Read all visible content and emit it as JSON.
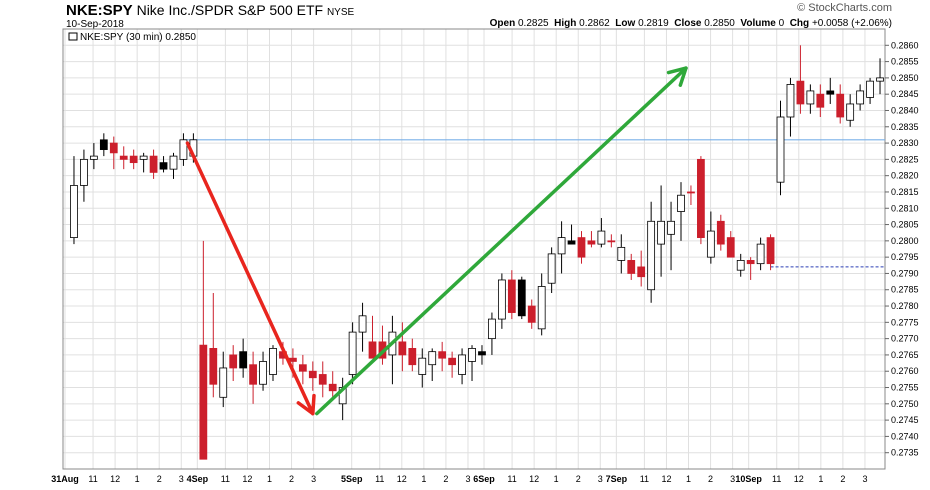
{
  "header": {
    "symbol": "NKE:SPY",
    "name": "Nike Inc./SPDR S&P 500 ETF",
    "exchange": "NYSE",
    "date": "10-Sep-2018",
    "brand": "© StockCharts.com",
    "open_label": "Open",
    "open": "0.2825",
    "high_label": "High",
    "high": "0.2862",
    "low_label": "Low",
    "low": "0.2819",
    "close_label": "Close",
    "close": "0.2850",
    "volume_label": "Volume",
    "volume": "0",
    "chg_label": "Chg",
    "chg": "+0.0058 (+2.06%)"
  },
  "legend": {
    "text": "NKE:SPY (30 min) 0.2850"
  },
  "colors": {
    "up": "#ffffff",
    "down": "#cc1f2c",
    "black": "#000000",
    "red_arrow": "#e8251e",
    "green_arrow": "#2fa83a",
    "hline": "#7ab0e8",
    "dotted": "#2b3fb5",
    "grid": "#e0e0e0"
  },
  "chart_data": {
    "type": "candlestick",
    "ylim": [
      0.273,
      0.2865
    ],
    "y_ticks": [
      "0.2735",
      "0.2740",
      "0.2745",
      "0.2750",
      "0.2755",
      "0.2760",
      "0.2765",
      "0.2770",
      "0.2775",
      "0.2780",
      "0.2785",
      "0.2790",
      "0.2795",
      "0.2800",
      "0.2805",
      "0.2810",
      "0.2815",
      "0.2820",
      "0.2825",
      "0.2830",
      "0.2835",
      "0.2840",
      "0.2845",
      "0.2850",
      "0.2855",
      "0.2860"
    ],
    "x_labels": [
      {
        "i": 0,
        "label": "31Aug",
        "bold": true
      },
      {
        "i": 1,
        "label": "11"
      },
      {
        "i": 2,
        "label": "12"
      },
      {
        "i": 3,
        "label": "1"
      },
      {
        "i": 4,
        "label": "2"
      },
      {
        "i": 5,
        "label": "3"
      },
      {
        "i": 6,
        "label": "4Sep",
        "bold": true
      },
      {
        "i": 7,
        "label": "11"
      },
      {
        "i": 8,
        "label": "12"
      },
      {
        "i": 9,
        "label": "1"
      },
      {
        "i": 10,
        "label": "2"
      },
      {
        "i": 11,
        "label": "3"
      },
      {
        "i": 13,
        "label": "5Sep",
        "bold": true
      },
      {
        "i": 14,
        "label": "11"
      },
      {
        "i": 15,
        "label": "12"
      },
      {
        "i": 16,
        "label": "1"
      },
      {
        "i": 17,
        "label": "2"
      },
      {
        "i": 18,
        "label": "3"
      },
      {
        "i": 19,
        "label": "6Sep",
        "bold": true
      },
      {
        "i": 20,
        "label": "11"
      },
      {
        "i": 21,
        "label": "12"
      },
      {
        "i": 22,
        "label": "1"
      },
      {
        "i": 23,
        "label": "2"
      },
      {
        "i": 24,
        "label": "3"
      },
      {
        "i": 25,
        "label": "7Sep",
        "bold": true
      },
      {
        "i": 26,
        "label": "11"
      },
      {
        "i": 27,
        "label": "12"
      },
      {
        "i": 28,
        "label": "1"
      },
      {
        "i": 29,
        "label": "2"
      },
      {
        "i": 30,
        "label": "3"
      },
      {
        "i": 31,
        "label": "10Sep",
        "bold": true
      },
      {
        "i": 32,
        "label": "11"
      },
      {
        "i": 33,
        "label": "12"
      },
      {
        "i": 34,
        "label": "1"
      },
      {
        "i": 35,
        "label": "2"
      },
      {
        "i": 36,
        "label": "3"
      }
    ],
    "candles": [
      {
        "o": 0.2801,
        "h": 0.2826,
        "l": 0.2799,
        "c": 0.2817,
        "k": "up"
      },
      {
        "o": 0.2817,
        "h": 0.2828,
        "l": 0.2812,
        "c": 0.2825,
        "k": "up"
      },
      {
        "o": 0.2825,
        "h": 0.283,
        "l": 0.2822,
        "c": 0.2826,
        "k": "up"
      },
      {
        "o": 0.2831,
        "h": 0.2833,
        "l": 0.2826,
        "c": 0.2828,
        "k": "black"
      },
      {
        "o": 0.283,
        "h": 0.2832,
        "l": 0.2822,
        "c": 0.2827,
        "k": "down"
      },
      {
        "o": 0.2826,
        "h": 0.2829,
        "l": 0.2822,
        "c": 0.2825,
        "k": "down"
      },
      {
        "o": 0.2826,
        "h": 0.2828,
        "l": 0.2822,
        "c": 0.2824,
        "k": "down"
      },
      {
        "o": 0.2826,
        "h": 0.2827,
        "l": 0.2821,
        "c": 0.2825,
        "k": "up"
      },
      {
        "o": 0.2826,
        "h": 0.2828,
        "l": 0.2819,
        "c": 0.2821,
        "k": "down"
      },
      {
        "o": 0.2824,
        "h": 0.2826,
        "l": 0.2821,
        "c": 0.2822,
        "k": "black"
      },
      {
        "o": 0.2822,
        "h": 0.2827,
        "l": 0.2819,
        "c": 0.2826,
        "k": "up"
      },
      {
        "o": 0.2825,
        "h": 0.2833,
        "l": 0.2823,
        "c": 0.2831,
        "k": "up"
      },
      {
        "o": 0.2826,
        "h": 0.2833,
        "l": 0.2824,
        "c": 0.2831,
        "k": "up"
      },
      {
        "o": 0.2768,
        "h": 0.28,
        "l": 0.2733,
        "c": 0.2733,
        "k": "down"
      },
      {
        "o": 0.2767,
        "h": 0.2784,
        "l": 0.2752,
        "c": 0.2756,
        "k": "down"
      },
      {
        "o": 0.2752,
        "h": 0.2766,
        "l": 0.2749,
        "c": 0.2761,
        "k": "up"
      },
      {
        "o": 0.2765,
        "h": 0.2768,
        "l": 0.2757,
        "c": 0.2761,
        "k": "down"
      },
      {
        "o": 0.2761,
        "h": 0.277,
        "l": 0.2758,
        "c": 0.2766,
        "k": "black"
      },
      {
        "o": 0.2762,
        "h": 0.2766,
        "l": 0.275,
        "c": 0.2756,
        "k": "down"
      },
      {
        "o": 0.2756,
        "h": 0.2766,
        "l": 0.2754,
        "c": 0.2763,
        "k": "up"
      },
      {
        "o": 0.2759,
        "h": 0.2768,
        "l": 0.2757,
        "c": 0.2767,
        "k": "up"
      },
      {
        "o": 0.2766,
        "h": 0.2769,
        "l": 0.2762,
        "c": 0.2764,
        "k": "down"
      },
      {
        "o": 0.2764,
        "h": 0.2767,
        "l": 0.2758,
        "c": 0.2763,
        "k": "down"
      },
      {
        "o": 0.2762,
        "h": 0.2765,
        "l": 0.2756,
        "c": 0.276,
        "k": "down"
      },
      {
        "o": 0.276,
        "h": 0.2763,
        "l": 0.2754,
        "c": 0.2758,
        "k": "down"
      },
      {
        "o": 0.2759,
        "h": 0.2763,
        "l": 0.2752,
        "c": 0.2756,
        "k": "down"
      },
      {
        "o": 0.2756,
        "h": 0.276,
        "l": 0.2751,
        "c": 0.2754,
        "k": "down"
      },
      {
        "o": 0.275,
        "h": 0.2758,
        "l": 0.2745,
        "c": 0.2755,
        "k": "up"
      },
      {
        "o": 0.2759,
        "h": 0.2775,
        "l": 0.2756,
        "c": 0.2772,
        "k": "up"
      },
      {
        "o": 0.2772,
        "h": 0.2781,
        "l": 0.2766,
        "c": 0.2777,
        "k": "up"
      },
      {
        "o": 0.2769,
        "h": 0.2777,
        "l": 0.2765,
        "c": 0.2764,
        "k": "down"
      },
      {
        "o": 0.2769,
        "h": 0.2774,
        "l": 0.2762,
        "c": 0.2764,
        "k": "down"
      },
      {
        "o": 0.2765,
        "h": 0.2777,
        "l": 0.2756,
        "c": 0.2772,
        "k": "up"
      },
      {
        "o": 0.2769,
        "h": 0.2775,
        "l": 0.276,
        "c": 0.2765,
        "k": "down"
      },
      {
        "o": 0.2767,
        "h": 0.277,
        "l": 0.276,
        "c": 0.2762,
        "k": "down"
      },
      {
        "o": 0.2759,
        "h": 0.2767,
        "l": 0.2755,
        "c": 0.2764,
        "k": "up"
      },
      {
        "o": 0.2762,
        "h": 0.2767,
        "l": 0.2757,
        "c": 0.2766,
        "k": "up"
      },
      {
        "o": 0.2766,
        "h": 0.2769,
        "l": 0.276,
        "c": 0.2764,
        "k": "down"
      },
      {
        "o": 0.2764,
        "h": 0.2766,
        "l": 0.2758,
        "c": 0.2762,
        "k": "down"
      },
      {
        "o": 0.2759,
        "h": 0.2767,
        "l": 0.2756,
        "c": 0.2765,
        "k": "up"
      },
      {
        "o": 0.2763,
        "h": 0.2768,
        "l": 0.2757,
        "c": 0.2767,
        "k": "up"
      },
      {
        "o": 0.2766,
        "h": 0.2768,
        "l": 0.2762,
        "c": 0.2765,
        "k": "black"
      },
      {
        "o": 0.277,
        "h": 0.2778,
        "l": 0.2765,
        "c": 0.2776,
        "k": "up"
      },
      {
        "o": 0.2776,
        "h": 0.279,
        "l": 0.2773,
        "c": 0.2788,
        "k": "up"
      },
      {
        "o": 0.2788,
        "h": 0.2791,
        "l": 0.2776,
        "c": 0.2778,
        "k": "down"
      },
      {
        "o": 0.2777,
        "h": 0.2789,
        "l": 0.2776,
        "c": 0.2788,
        "k": "black"
      },
      {
        "o": 0.278,
        "h": 0.2782,
        "l": 0.2773,
        "c": 0.2775,
        "k": "down"
      },
      {
        "o": 0.2773,
        "h": 0.279,
        "l": 0.2771,
        "c": 0.2786,
        "k": "up"
      },
      {
        "o": 0.2787,
        "h": 0.2798,
        "l": 0.2784,
        "c": 0.2796,
        "k": "up"
      },
      {
        "o": 0.2796,
        "h": 0.2806,
        "l": 0.279,
        "c": 0.2801,
        "k": "up"
      },
      {
        "o": 0.28,
        "h": 0.2805,
        "l": 0.2799,
        "c": 0.2799,
        "k": "black"
      },
      {
        "o": 0.2801,
        "h": 0.2803,
        "l": 0.2793,
        "c": 0.2795,
        "k": "down"
      },
      {
        "o": 0.28,
        "h": 0.2803,
        "l": 0.2798,
        "c": 0.2799,
        "k": "down"
      },
      {
        "o": 0.2799,
        "h": 0.2807,
        "l": 0.2798,
        "c": 0.2803,
        "k": "up"
      },
      {
        "o": 0.28,
        "h": 0.2802,
        "l": 0.2798,
        "c": 0.28,
        "k": "down"
      },
      {
        "o": 0.2794,
        "h": 0.2802,
        "l": 0.279,
        "c": 0.2798,
        "k": "up"
      },
      {
        "o": 0.2794,
        "h": 0.2796,
        "l": 0.2788,
        "c": 0.279,
        "k": "down"
      },
      {
        "o": 0.2792,
        "h": 0.2797,
        "l": 0.2786,
        "c": 0.2789,
        "k": "down"
      },
      {
        "o": 0.2785,
        "h": 0.2812,
        "l": 0.2781,
        "c": 0.2806,
        "k": "up"
      },
      {
        "o": 0.2806,
        "h": 0.2817,
        "l": 0.2789,
        "c": 0.2799,
        "k": "up"
      },
      {
        "o": 0.2802,
        "h": 0.2812,
        "l": 0.2791,
        "c": 0.2806,
        "k": "up"
      },
      {
        "o": 0.2809,
        "h": 0.2818,
        "l": 0.28,
        "c": 0.2814,
        "k": "up"
      },
      {
        "o": 0.2815,
        "h": 0.2817,
        "l": 0.2811,
        "c": 0.2815,
        "k": "down"
      },
      {
        "o": 0.2825,
        "h": 0.2826,
        "l": 0.2799,
        "c": 0.2801,
        "k": "down"
      },
      {
        "o": 0.2803,
        "h": 0.2809,
        "l": 0.2793,
        "c": 0.2795,
        "k": "up"
      },
      {
        "o": 0.2806,
        "h": 0.2808,
        "l": 0.2797,
        "c": 0.2799,
        "k": "down"
      },
      {
        "o": 0.2801,
        "h": 0.2803,
        "l": 0.2795,
        "c": 0.2795,
        "k": "down"
      },
      {
        "o": 0.2794,
        "h": 0.2796,
        "l": 0.2789,
        "c": 0.2791,
        "k": "up"
      },
      {
        "o": 0.2794,
        "h": 0.2795,
        "l": 0.2788,
        "c": 0.2793,
        "k": "down"
      },
      {
        "o": 0.2793,
        "h": 0.2801,
        "l": 0.2791,
        "c": 0.2799,
        "k": "up"
      },
      {
        "o": 0.2801,
        "h": 0.2802,
        "l": 0.2791,
        "c": 0.2793,
        "k": "down"
      },
      {
        "o": 0.2818,
        "h": 0.2843,
        "l": 0.2814,
        "c": 0.2838,
        "k": "up"
      },
      {
        "o": 0.2838,
        "h": 0.285,
        "l": 0.2832,
        "c": 0.2848,
        "k": "up"
      },
      {
        "o": 0.2849,
        "h": 0.286,
        "l": 0.2839,
        "c": 0.2842,
        "k": "down"
      },
      {
        "o": 0.2842,
        "h": 0.2848,
        "l": 0.2839,
        "c": 0.2846,
        "k": "up"
      },
      {
        "o": 0.2845,
        "h": 0.2848,
        "l": 0.2838,
        "c": 0.2841,
        "k": "down"
      },
      {
        "o": 0.2845,
        "h": 0.285,
        "l": 0.2842,
        "c": 0.2846,
        "k": "black"
      },
      {
        "o": 0.2845,
        "h": 0.2848,
        "l": 0.2836,
        "c": 0.2838,
        "k": "down"
      },
      {
        "o": 0.2837,
        "h": 0.2845,
        "l": 0.2835,
        "c": 0.2842,
        "k": "up"
      },
      {
        "o": 0.2842,
        "h": 0.2848,
        "l": 0.284,
        "c": 0.2846,
        "k": "up"
      },
      {
        "o": 0.2844,
        "h": 0.285,
        "l": 0.2842,
        "c": 0.2849,
        "k": "up"
      },
      {
        "o": 0.2849,
        "h": 0.2856,
        "l": 0.2845,
        "c": 0.285,
        "k": "up"
      }
    ],
    "resistance_line": 0.2831,
    "dotted_line": 0.2792,
    "red_arrow": {
      "from": {
        "i": 11.4,
        "y": 0.283
      },
      "to": {
        "i": 24.0,
        "y": 0.2747
      }
    },
    "green_arrow": {
      "from": {
        "i": 24.4,
        "y": 0.2747
      },
      "to": {
        "i": 61.5,
        "y": 0.2853
      }
    }
  }
}
